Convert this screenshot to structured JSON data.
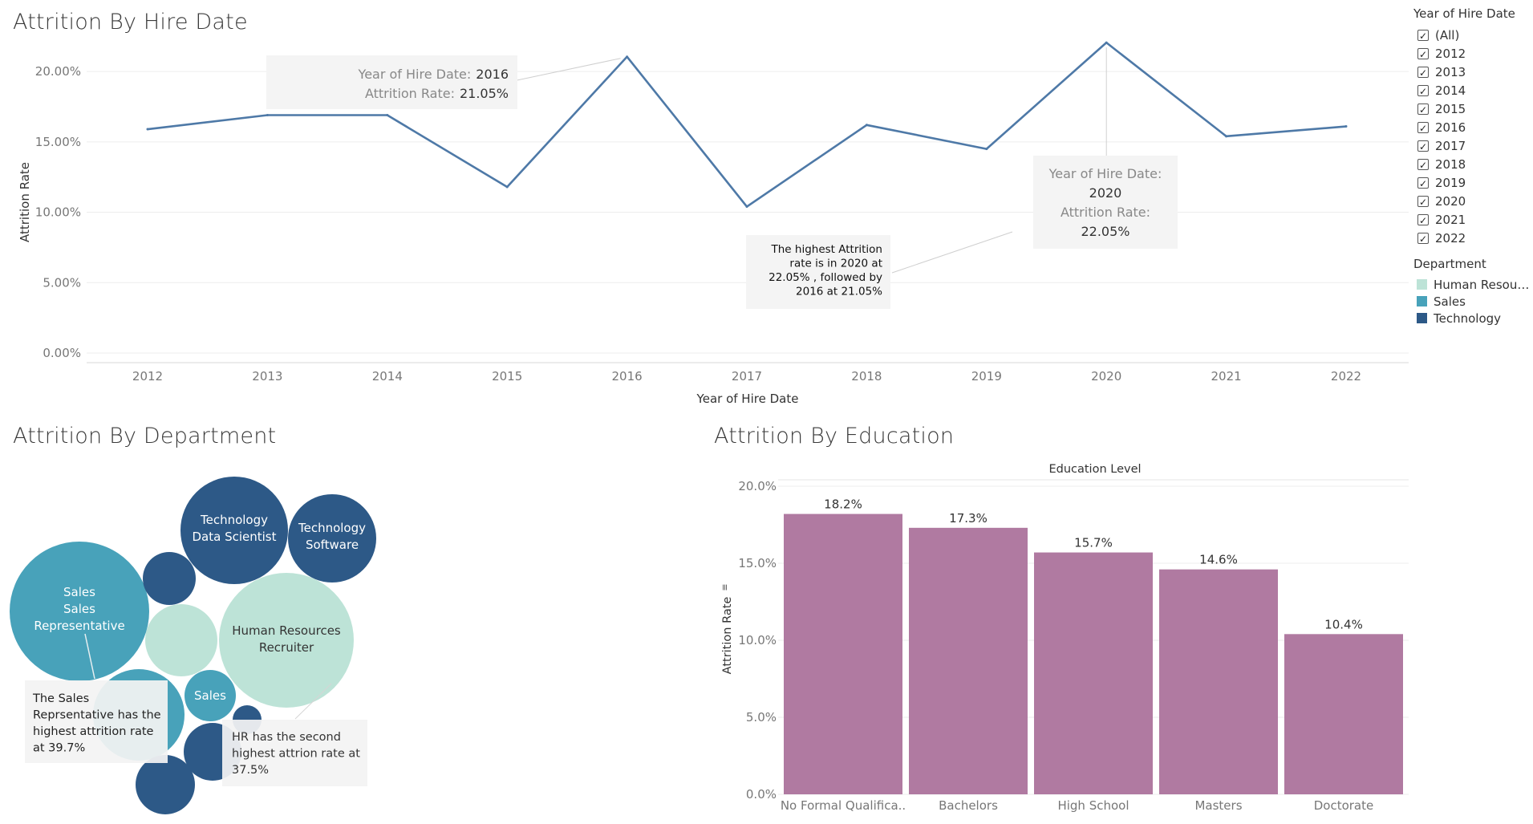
{
  "titles": {
    "hire": "Attrition By Hire Date",
    "department": "Attrition By Department",
    "education": "Attrition By Education"
  },
  "colors": {
    "line": "#4e79a7",
    "bar": "#b07aa1",
    "hr": "#bde3d7",
    "sales": "#48a2ba",
    "technology": "#2d5987"
  },
  "filter": {
    "title": "Year of Hire Date",
    "items": [
      "(All)",
      "2012",
      "2013",
      "2014",
      "2015",
      "2016",
      "2017",
      "2018",
      "2019",
      "2020",
      "2021",
      "2022"
    ]
  },
  "dept_legend": {
    "title": "Department",
    "items": [
      {
        "label": "Human Resourc..",
        "color": "#bde3d7"
      },
      {
        "label": "Sales",
        "color": "#48a2ba"
      },
      {
        "label": "Technology",
        "color": "#2d5987"
      }
    ]
  },
  "tooltips": {
    "y2016": {
      "key1": "Year of Hire Date:",
      "val1": "2016",
      "key2": "Attrition Rate:",
      "val2": "21.05%"
    },
    "y2020": {
      "key1": "Year of Hire Date:",
      "val1": "2020",
      "key2": "Attrition Rate:",
      "val2": "22.05%"
    }
  },
  "annotations": {
    "hire": [
      "The highest Attrition",
      "rate is in 2020 at",
      "22.05% , followed by",
      "2016 at 21.05%"
    ],
    "sales": [
      "The Sales",
      "Reprsentative has the",
      "highest attrition rate",
      "at 39.7%"
    ],
    "hr": [
      "HR has the second",
      "highest attrion rate at",
      "37.5%"
    ]
  },
  "chart_data": [
    {
      "type": "line",
      "title": "Attrition By Hire Date",
      "xlabel": "Year of Hire Date",
      "ylabel": "Attrition Rate",
      "x": [
        "2012",
        "2013",
        "2014",
        "2015",
        "2016",
        "2017",
        "2018",
        "2019",
        "2020",
        "2021",
        "2022"
      ],
      "values": [
        15.9,
        16.9,
        16.9,
        11.8,
        21.05,
        10.4,
        16.2,
        14.5,
        22.05,
        15.4,
        16.1
      ],
      "ylim": [
        0,
        22.8
      ],
      "yticks": [
        "0.00%",
        "5.00%",
        "10.00%",
        "15.00%",
        "20.00%"
      ],
      "ytick_values": [
        0,
        5,
        10,
        15,
        20
      ],
      "grid": true
    },
    {
      "type": "bubble",
      "title": "Attrition By Department",
      "legend": "Department",
      "bubbles": [
        {
          "department": "Sales",
          "labels": [
            "Sales",
            "Sales",
            "Representative"
          ],
          "value": 39.7
        },
        {
          "department": "Human Resources",
          "labels": [
            "Human Resources",
            "Recruiter"
          ],
          "value": 37.5
        },
        {
          "department": "Technology",
          "labels": [
            "Technology",
            "Data Scientist"
          ]
        },
        {
          "department": "Technology",
          "labels": [
            "Technology",
            "Software"
          ]
        },
        {
          "department": "Sales",
          "labels": [
            "Sales"
          ]
        },
        {
          "department": "Technology",
          "labels": []
        },
        {
          "department": "Human Resources",
          "labels": []
        },
        {
          "department": "Sales",
          "labels": []
        },
        {
          "department": "Technology",
          "labels": []
        },
        {
          "department": "Technology",
          "labels": []
        },
        {
          "department": "Technology",
          "labels": []
        }
      ]
    },
    {
      "type": "bar",
      "title": "Attrition By Education",
      "header": "Education Level",
      "ylabel": "Attrition Rate",
      "categories": [
        "No Formal Qualifica..",
        "Bachelors",
        "High School",
        "Masters",
        "Doctorate"
      ],
      "values": [
        18.2,
        17.3,
        15.7,
        14.6,
        10.4
      ],
      "labels": [
        "18.2%",
        "17.3%",
        "15.7%",
        "14.6%",
        "10.4%"
      ],
      "ylim": [
        0,
        20
      ],
      "yticks": [
        "0.0%",
        "5.0%",
        "10.0%",
        "15.0%",
        "20.0%"
      ],
      "ytick_values": [
        0,
        5,
        10,
        15,
        20
      ],
      "grid": true
    }
  ]
}
